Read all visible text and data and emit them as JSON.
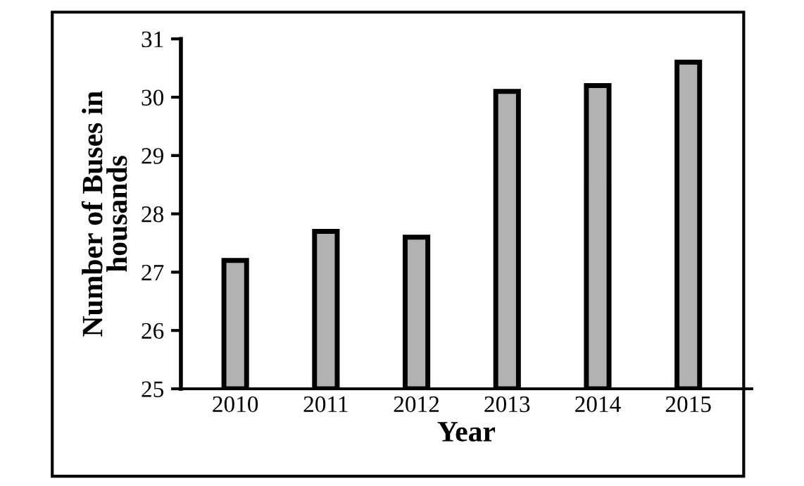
{
  "chart_data": {
    "type": "bar",
    "xlabel": "Year",
    "ylabel": "Number of Buses in\nhousands",
    "categories": [
      "2010",
      "2011",
      "2012",
      "2013",
      "2014",
      "2015"
    ],
    "values": [
      27.2,
      27.7,
      27.6,
      30.1,
      30.2,
      30.6
    ],
    "color": "#b2b2b2",
    "ylim": [
      25,
      31
    ],
    "yticks": [
      25,
      26,
      27,
      28,
      29,
      30,
      31
    ],
    "grid": false,
    "legend": false
  }
}
